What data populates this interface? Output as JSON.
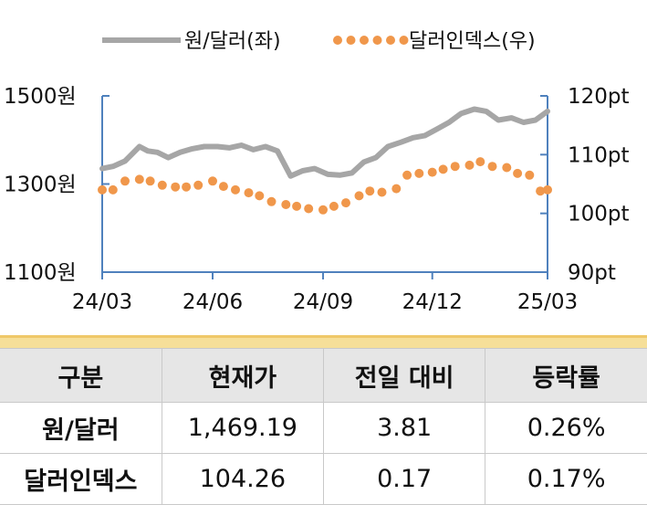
{
  "legend": {
    "krw": "원/달러(좌)",
    "dxy": "달러인덱스(우)"
  },
  "colors": {
    "krw": "#a6a6a6",
    "dxy": "#f0974b",
    "axis": "#4f81bd"
  },
  "chart_data": {
    "type": "line",
    "x_ticks": [
      "24/03",
      "24/06",
      "24/09",
      "24/12",
      "25/03"
    ],
    "y_left": {
      "ticks": [
        "1500원",
        "1300원",
        "1100원"
      ],
      "range": [
        1100,
        1500
      ]
    },
    "y_right": {
      "ticks": [
        "120pt",
        "110pt",
        "100pt",
        "90pt"
      ],
      "range": [
        90,
        120
      ]
    },
    "series": [
      {
        "name": "원/달러(좌)",
        "axis": "left",
        "style": "line",
        "x": [
          "2024-03-01",
          "2024-03-10",
          "2024-03-20",
          "2024-04-01",
          "2024-04-08",
          "2024-04-16",
          "2024-04-25",
          "2024-05-05",
          "2024-05-15",
          "2024-05-25",
          "2024-06-05",
          "2024-06-15",
          "2024-06-25",
          "2024-07-05",
          "2024-07-15",
          "2024-07-25",
          "2024-08-05",
          "2024-08-15",
          "2024-08-25",
          "2024-09-05",
          "2024-09-15",
          "2024-09-25",
          "2024-10-05",
          "2024-10-15",
          "2024-10-25",
          "2024-11-05",
          "2024-11-15",
          "2024-11-25",
          "2024-12-05",
          "2024-12-15",
          "2024-12-25",
          "2025-01-05",
          "2025-01-15",
          "2025-01-25",
          "2025-02-05",
          "2025-02-15",
          "2025-02-25",
          "2025-03-07"
        ],
        "values": [
          1335,
          1340,
          1352,
          1385,
          1375,
          1372,
          1360,
          1372,
          1380,
          1385,
          1385,
          1382,
          1388,
          1378,
          1385,
          1375,
          1318,
          1330,
          1335,
          1322,
          1320,
          1325,
          1350,
          1360,
          1385,
          1395,
          1405,
          1410,
          1425,
          1440,
          1460,
          1470,
          1465,
          1445,
          1450,
          1440,
          1445,
          1465
        ]
      },
      {
        "name": "달러인덱스(우)",
        "axis": "right",
        "style": "dots",
        "x": [
          "2024-03-01",
          "2024-03-10",
          "2024-03-20",
          "2024-04-01",
          "2024-04-10",
          "2024-04-20",
          "2024-05-01",
          "2024-05-10",
          "2024-05-20",
          "2024-06-01",
          "2024-06-10",
          "2024-06-20",
          "2024-07-01",
          "2024-07-10",
          "2024-07-20",
          "2024-08-01",
          "2024-08-10",
          "2024-08-20",
          "2024-09-01",
          "2024-09-10",
          "2024-09-20",
          "2024-10-01",
          "2024-10-10",
          "2024-10-20",
          "2024-11-01",
          "2024-11-10",
          "2024-11-20",
          "2024-12-01",
          "2024-12-10",
          "2024-12-20",
          "2025-01-01",
          "2025-01-10",
          "2025-01-20",
          "2025-02-01",
          "2025-02-10",
          "2025-02-20",
          "2025-03-01",
          "2025-03-07"
        ],
        "values": [
          104,
          104,
          105.5,
          105.8,
          105.5,
          104.8,
          104.5,
          104.5,
          104.8,
          105.5,
          104.6,
          104,
          103.5,
          103,
          102,
          101.5,
          101.2,
          100.8,
          100.6,
          101.2,
          101.8,
          103,
          103.8,
          103.6,
          104.2,
          106.5,
          106.8,
          107,
          107.5,
          108,
          108.2,
          108.8,
          108,
          107.8,
          106.8,
          106.5,
          103.8,
          104
        ]
      }
    ]
  },
  "table": {
    "headers": [
      "구분",
      "현재가",
      "전일 대비",
      "등락률"
    ],
    "rows": [
      [
        "원/달러",
        "1,469.19",
        "3.81",
        "0.26%"
      ],
      [
        "달러인덱스",
        "104.26",
        "0.17",
        "0.17%"
      ]
    ]
  }
}
